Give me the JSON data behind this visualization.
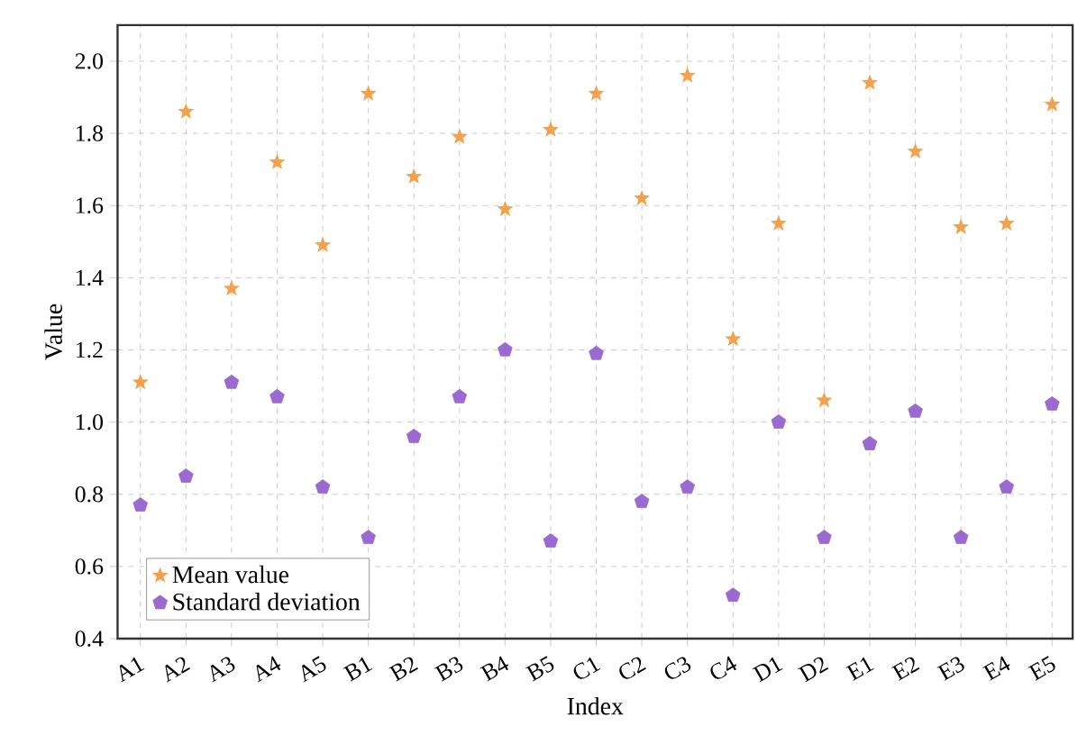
{
  "chart_data": {
    "type": "scatter",
    "xlabel": "Index",
    "ylabel": "Value",
    "categories": [
      "A1",
      "A2",
      "A3",
      "A4",
      "A5",
      "B1",
      "B2",
      "B3",
      "B4",
      "B5",
      "C1",
      "C2",
      "C3",
      "C4",
      "D1",
      "D2",
      "E1",
      "E2",
      "E3",
      "E4",
      "E5"
    ],
    "series": [
      {
        "name": "Mean value",
        "color": "#f5a04a",
        "marker": "star",
        "values": [
          1.11,
          1.86,
          1.37,
          1.72,
          1.49,
          1.91,
          1.68,
          1.79,
          1.59,
          1.81,
          1.91,
          1.62,
          1.96,
          1.23,
          1.55,
          1.06,
          1.94,
          1.75,
          1.54,
          1.55,
          1.88
        ]
      },
      {
        "name": "Standard deviation",
        "color": "#9b6ad0",
        "values": [
          0.77,
          0.85,
          1.11,
          1.07,
          0.82,
          0.68,
          0.96,
          1.07,
          1.2,
          0.67,
          1.19,
          0.78,
          0.82,
          0.52,
          1.0,
          0.68,
          0.94,
          1.03,
          0.68,
          0.82,
          1.05
        ]
      }
    ],
    "ylim": [
      0.4,
      2.1
    ],
    "yticks": [
      0.4,
      0.6,
      0.8,
      {
        "value": 1.0,
        "label": "1.0"
      },
      1.2,
      1.4,
      1.6,
      1.8,
      {
        "value": 2.0,
        "label": "2.0"
      }
    ],
    "grid": true,
    "legend": "bottom left"
  }
}
